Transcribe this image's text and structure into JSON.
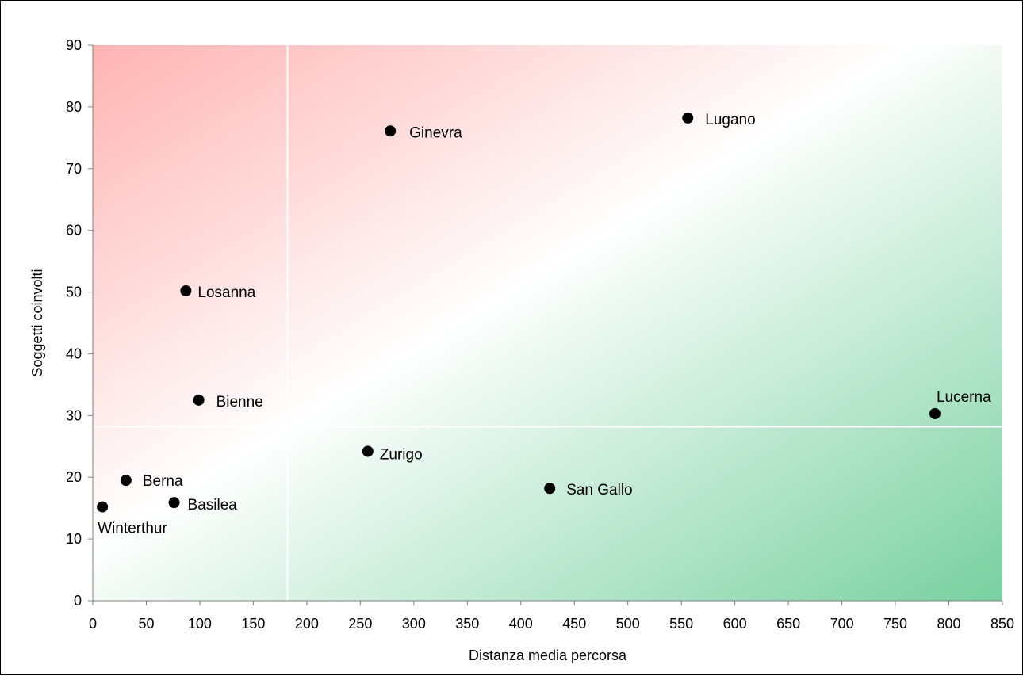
{
  "chart_data": {
    "type": "scatter",
    "title": "",
    "xlabel": "Distanza media percorsa",
    "ylabel": "Soggetti coinvolti",
    "xlim": [
      0,
      850
    ],
    "ylim": [
      0,
      90
    ],
    "x_ticks": [
      0,
      50,
      100,
      150,
      200,
      250,
      300,
      350,
      400,
      450,
      500,
      550,
      600,
      650,
      700,
      750,
      800,
      850
    ],
    "y_ticks": [
      0,
      10,
      20,
      30,
      40,
      50,
      60,
      70,
      80,
      90
    ],
    "reference_lines": {
      "x": 182,
      "y": 28.2
    },
    "grid": false,
    "legend": "none",
    "background_gradient": {
      "top_left": "#ffb3b3",
      "middle": "#ffffff",
      "bottom_right": "#78d0a0"
    },
    "marker_color": "#000000",
    "points": [
      {
        "label": "Ginevra",
        "x": 278,
        "y": 76.1
      },
      {
        "label": "Lugano",
        "x": 556,
        "y": 78.2
      },
      {
        "label": "Losanna",
        "x": 87,
        "y": 50.2
      },
      {
        "label": "Bienne",
        "x": 99,
        "y": 32.5
      },
      {
        "label": "Lucerna",
        "x": 787,
        "y": 30.3
      },
      {
        "label": "Zurigo",
        "x": 257,
        "y": 24.2
      },
      {
        "label": "San Gallo",
        "x": 427,
        "y": 18.2
      },
      {
        "label": "Berna",
        "x": 31,
        "y": 19.5
      },
      {
        "label": "Basilea",
        "x": 76,
        "y": 15.9
      },
      {
        "label": "Winterthur",
        "x": 9,
        "y": 15.2
      }
    ]
  }
}
